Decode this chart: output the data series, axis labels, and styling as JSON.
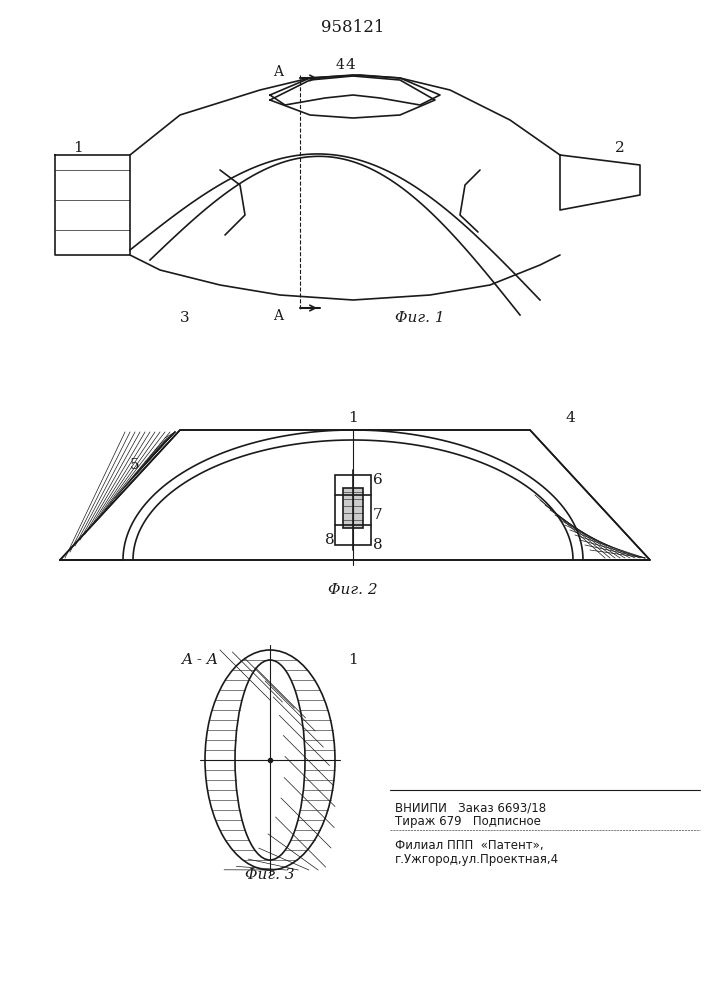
{
  "title": "958121",
  "background_color": "#ffffff",
  "line_color": "#1a1a1a",
  "hatch_color": "#1a1a1a",
  "fig1_label": "Φиг. 1",
  "fig2_label": "Φиг. 2",
  "fig3_label": "Φиг. 3",
  "section_label": "A - A",
  "footer_line1": "ВНИИПИ   Заказ 6693/18",
  "footer_line2": "Тираж 679   Подписное",
  "footer_line3": "Филиал ППП  «Патент»,",
  "footer_line4": "г.Ужгород,ул.Проектная,4"
}
